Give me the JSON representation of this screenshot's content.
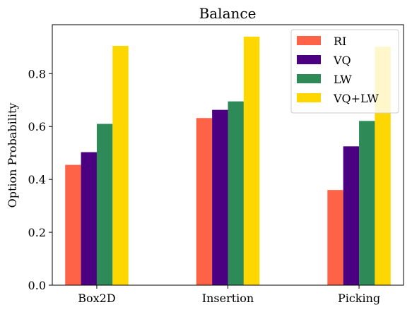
{
  "chart_data": {
    "type": "bar",
    "title": "Balance",
    "xlabel": "",
    "ylabel": "Option Probability",
    "categories": [
      "Box2D",
      "Insertion",
      "Picking"
    ],
    "series": [
      {
        "name": "RI",
        "color": "#FF6347",
        "values": [
          0.455,
          0.632,
          0.36
        ]
      },
      {
        "name": "VQ",
        "color": "#4B0082",
        "values": [
          0.503,
          0.663,
          0.525
        ]
      },
      {
        "name": "LW",
        "color": "#2E8B57",
        "values": [
          0.61,
          0.695,
          0.621
        ]
      },
      {
        "name": "VQ+LW",
        "color": "#FFD700",
        "values": [
          0.905,
          0.94,
          0.902
        ]
      }
    ],
    "ylim": [
      0,
      0.985
    ],
    "yticks": [
      0.0,
      0.2,
      0.4,
      0.6,
      0.8
    ],
    "ytick_labels": [
      "0.0",
      "0.2",
      "0.4",
      "0.6",
      "0.8"
    ],
    "legend": "top-right",
    "grid": false
  }
}
